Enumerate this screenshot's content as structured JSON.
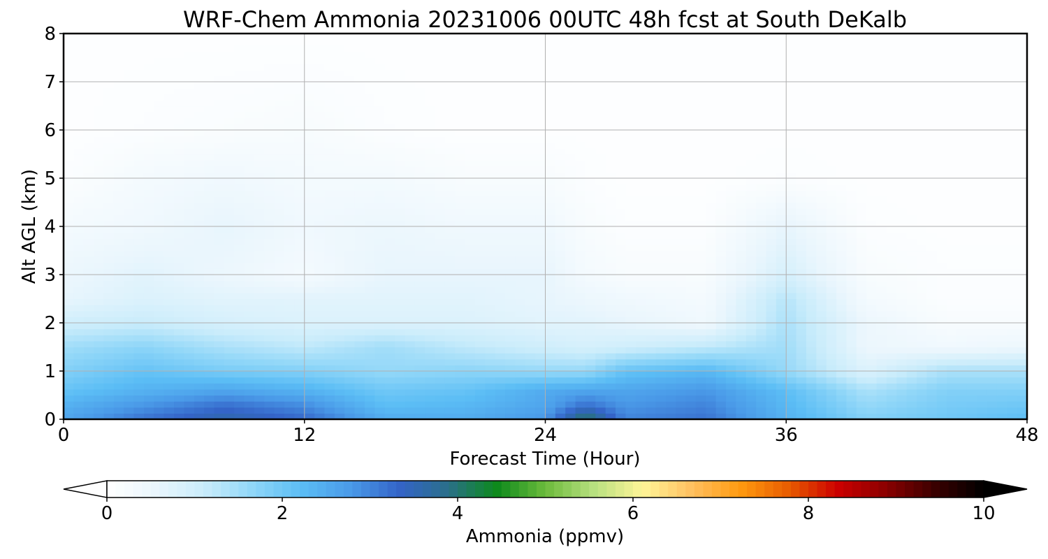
{
  "chart_data": {
    "type": "heatmap",
    "title": "WRF-Chem Ammonia  20231006 00UTC 48h fcst at South DeKalb",
    "xlabel": "Forecast Time (Hour)",
    "ylabel": "Alt AGL (km)",
    "xlim": [
      0,
      48
    ],
    "ylim": [
      0,
      8
    ],
    "x_ticks": [
      0,
      12,
      24,
      36,
      48
    ],
    "y_ticks": [
      0,
      1,
      2,
      3,
      4,
      5,
      6,
      7,
      8
    ],
    "grid": true,
    "colorbar": {
      "label": "Ammonia  (ppmv)",
      "range": [
        0,
        10
      ],
      "ticks": [
        0,
        2,
        4,
        6,
        8,
        10
      ],
      "extend": "both",
      "colors": [
        "#ffffff",
        "#eaf6fd",
        "#c9ecfb",
        "#8fd6f8",
        "#5bbdf5",
        "#4a9ae8",
        "#3464c8",
        "#2a6f8a",
        "#0d8a1c",
        "#6cbb3c",
        "#b8e080",
        "#fff598",
        "#ffc060",
        "#ff9a10",
        "#e85c00",
        "#cc0000",
        "#8a0000",
        "#3a0000",
        "#000000"
      ]
    },
    "x": [
      0,
      4,
      8,
      12,
      16,
      20,
      24,
      26,
      28,
      32,
      36,
      40,
      44,
      48
    ],
    "y": [
      0,
      0.3,
      0.6,
      1,
      1.5,
      2,
      2.5,
      3,
      4,
      5,
      6,
      8
    ],
    "z": [
      [
        2.6,
        3.2,
        3.6,
        3.3,
        2.5,
        2.5,
        2.8,
        4.2,
        3.0,
        3.2,
        2.4,
        1.8,
        2.0,
        2.2
      ],
      [
        2.4,
        2.8,
        3.2,
        2.9,
        2.2,
        2.3,
        2.6,
        3.2,
        2.8,
        3.0,
        2.3,
        1.6,
        1.9,
        2.0
      ],
      [
        2.1,
        2.4,
        2.6,
        2.4,
        2.0,
        2.1,
        2.5,
        2.6,
        2.6,
        2.8,
        2.2,
        1.4,
        1.8,
        1.8
      ],
      [
        1.8,
        2.1,
        1.9,
        1.8,
        1.6,
        1.7,
        1.6,
        1.6,
        2.1,
        2.3,
        1.6,
        0.8,
        1.4,
        1.4
      ],
      [
        1.5,
        1.7,
        1.4,
        1.2,
        1.5,
        1.2,
        1.0,
        0.9,
        1.0,
        1.2,
        1.5,
        0.5,
        0.4,
        0.5
      ],
      [
        1.0,
        1.1,
        0.9,
        0.8,
        0.8,
        0.8,
        0.7,
        0.7,
        0.6,
        0.4,
        1.4,
        0.5,
        0.2,
        0.2
      ],
      [
        0.6,
        0.8,
        0.7,
        0.7,
        0.7,
        0.7,
        0.6,
        0.5,
        0.4,
        0.3,
        1.3,
        0.3,
        0.1,
        0.1
      ],
      [
        0.5,
        0.7,
        0.5,
        0.3,
        0.6,
        0.6,
        0.6,
        0.3,
        0.2,
        0.2,
        0.9,
        0.2,
        0.1,
        0.1
      ],
      [
        0.3,
        0.4,
        0.6,
        0.4,
        0.5,
        0.4,
        0.4,
        0.2,
        0.1,
        0.1,
        0.6,
        0.1,
        0.05,
        0.05
      ],
      [
        0.1,
        0.3,
        0.4,
        0.3,
        0.3,
        0.2,
        0.2,
        0.1,
        0.05,
        0.05,
        0.1,
        0.05,
        0.05,
        0.05
      ],
      [
        0.05,
        0.1,
        0.15,
        0.2,
        0.1,
        0.05,
        0.05,
        0.05,
        0.05,
        0.05,
        0.05,
        0.05,
        0.05,
        0.05
      ],
      [
        0.05,
        0.05,
        0.05,
        0.05,
        0.05,
        0.05,
        0.05,
        0.05,
        0.05,
        0.05,
        0.05,
        0.05,
        0.05,
        0.05
      ]
    ]
  }
}
